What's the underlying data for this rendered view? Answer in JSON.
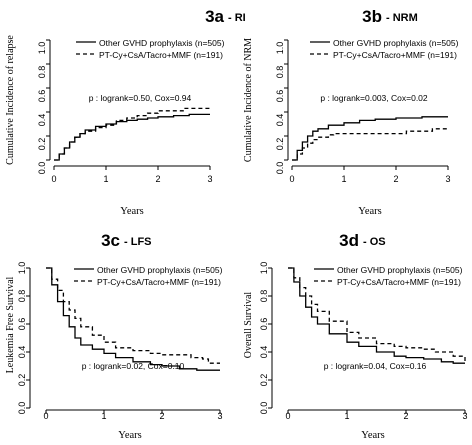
{
  "chart_data": [
    {
      "type": "line",
      "id": "3a",
      "title_main": "3a",
      "title_sub": "- RI",
      "xlabel": "Years",
      "ylabel": "Cumulative Incidence of relapse",
      "xlim": [
        0,
        3
      ],
      "ylim": [
        0,
        1
      ],
      "xticks": [
        "0",
        "1",
        "2",
        "3"
      ],
      "yticks": [
        "0.0",
        "0.2",
        "0.4",
        "0.6",
        "0.8",
        "1.0"
      ],
      "legend_position": "top-right",
      "annotation": "p : logrank=0.50, Cox=0.94",
      "series": [
        {
          "name": "Other GVHD prophylaxis (n=505)",
          "style": "solid",
          "points": [
            [
              0,
              0
            ],
            [
              0.1,
              0.05
            ],
            [
              0.2,
              0.1
            ],
            [
              0.3,
              0.15
            ],
            [
              0.4,
              0.19
            ],
            [
              0.5,
              0.22
            ],
            [
              0.6,
              0.25
            ],
            [
              0.8,
              0.28
            ],
            [
              1.0,
              0.3
            ],
            [
              1.2,
              0.32
            ],
            [
              1.4,
              0.33
            ],
            [
              1.6,
              0.34
            ],
            [
              1.8,
              0.35
            ],
            [
              2.0,
              0.36
            ],
            [
              2.3,
              0.37
            ],
            [
              2.6,
              0.38
            ],
            [
              3.0,
              0.38
            ]
          ]
        },
        {
          "name": "PT-Cy+CsA/Tacro+MMF (n=191)",
          "style": "dashed",
          "points": [
            [
              0,
              0
            ],
            [
              0.1,
              0.05
            ],
            [
              0.2,
              0.1
            ],
            [
              0.3,
              0.15
            ],
            [
              0.4,
              0.19
            ],
            [
              0.5,
              0.22
            ],
            [
              0.6,
              0.24
            ],
            [
              0.8,
              0.27
            ],
            [
              1.0,
              0.29
            ],
            [
              1.2,
              0.33
            ],
            [
              1.4,
              0.35
            ],
            [
              1.6,
              0.37
            ],
            [
              1.8,
              0.39
            ],
            [
              2.0,
              0.41
            ],
            [
              2.4,
              0.41
            ],
            [
              2.5,
              0.43
            ],
            [
              3.0,
              0.43
            ]
          ]
        }
      ]
    },
    {
      "type": "line",
      "id": "3b",
      "title_main": "3b",
      "title_sub": "- NRM",
      "xlabel": "Years",
      "ylabel": "Cumulative Incidence of NRM",
      "xlim": [
        0,
        3
      ],
      "ylim": [
        0,
        1
      ],
      "xticks": [
        "0",
        "1",
        "2",
        "3"
      ],
      "yticks": [
        "0.0",
        "0.2",
        "0.4",
        "0.6",
        "0.8",
        "1.0"
      ],
      "legend_position": "top-right",
      "annotation": "p : logrank=0.003, Cox=0.02",
      "series": [
        {
          "name": "Other GVHD prophylaxis (n=505)",
          "style": "solid",
          "points": [
            [
              0,
              0
            ],
            [
              0.1,
              0.08
            ],
            [
              0.2,
              0.15
            ],
            [
              0.3,
              0.2
            ],
            [
              0.4,
              0.24
            ],
            [
              0.5,
              0.26
            ],
            [
              0.7,
              0.29
            ],
            [
              1.0,
              0.31
            ],
            [
              1.3,
              0.33
            ],
            [
              1.6,
              0.34
            ],
            [
              2.0,
              0.35
            ],
            [
              2.5,
              0.36
            ],
            [
              3.0,
              0.36
            ]
          ]
        },
        {
          "name": "PT-Cy+CsA/Tacro+MMF (n=191)",
          "style": "dashed",
          "points": [
            [
              0,
              0
            ],
            [
              0.1,
              0.05
            ],
            [
              0.2,
              0.1
            ],
            [
              0.3,
              0.14
            ],
            [
              0.4,
              0.17
            ],
            [
              0.5,
              0.19
            ],
            [
              0.7,
              0.21
            ],
            [
              0.8,
              0.22
            ],
            [
              2.0,
              0.22
            ],
            [
              2.2,
              0.24
            ],
            [
              2.6,
              0.24
            ],
            [
              2.7,
              0.26
            ],
            [
              3.0,
              0.26
            ]
          ]
        }
      ]
    },
    {
      "type": "line",
      "id": "3c",
      "title_main": "3c",
      "title_sub": "- LFS",
      "xlabel": "Years",
      "ylabel": "Leukemia Free Survival",
      "xlim": [
        0,
        3
      ],
      "ylim": [
        0,
        1
      ],
      "xticks": [
        "0",
        "1",
        "2",
        "3"
      ],
      "yticks": [
        "0.0",
        "0.2",
        "0.4",
        "0.6",
        "0.8",
        "1.0"
      ],
      "legend_position": "top-right",
      "annotation": "p : logrank=0.02, Cox=0.10",
      "series": [
        {
          "name": "Other GVHD prophylaxis (n=505)",
          "style": "solid",
          "points": [
            [
              0,
              1.0
            ],
            [
              0.1,
              0.88
            ],
            [
              0.2,
              0.76
            ],
            [
              0.3,
              0.66
            ],
            [
              0.4,
              0.58
            ],
            [
              0.5,
              0.5
            ],
            [
              0.6,
              0.45
            ],
            [
              0.8,
              0.42
            ],
            [
              1.0,
              0.39
            ],
            [
              1.2,
              0.36
            ],
            [
              1.5,
              0.33
            ],
            [
              1.8,
              0.31
            ],
            [
              2.0,
              0.3
            ],
            [
              2.3,
              0.28
            ],
            [
              2.6,
              0.27
            ],
            [
              3.0,
              0.27
            ]
          ]
        },
        {
          "name": "PT-Cy+CsA/Tacro+MMF (n=191)",
          "style": "dashed",
          "points": [
            [
              0,
              1.0
            ],
            [
              0.1,
              0.92
            ],
            [
              0.2,
              0.84
            ],
            [
              0.3,
              0.76
            ],
            [
              0.4,
              0.7
            ],
            [
              0.5,
              0.64
            ],
            [
              0.6,
              0.58
            ],
            [
              0.8,
              0.52
            ],
            [
              1.0,
              0.47
            ],
            [
              1.2,
              0.43
            ],
            [
              1.5,
              0.41
            ],
            [
              1.8,
              0.39
            ],
            [
              2.0,
              0.38
            ],
            [
              2.5,
              0.36
            ],
            [
              2.7,
              0.35
            ],
            [
              2.8,
              0.32
            ],
            [
              3.0,
              0.32
            ]
          ]
        }
      ]
    },
    {
      "type": "line",
      "id": "3d",
      "title_main": "3d",
      "title_sub": "- OS",
      "xlabel": "Years",
      "ylabel": "Overall Survival",
      "xlim": [
        0,
        3
      ],
      "ylim": [
        0,
        1
      ],
      "xticks": [
        "0",
        "1",
        "2",
        "3"
      ],
      "yticks": [
        "0.0",
        "0.2",
        "0.4",
        "0.6",
        "0.8",
        "1.0"
      ],
      "legend_position": "top-right",
      "annotation": "p : logrank=0.04, Cox=0.16",
      "series": [
        {
          "name": "Other GVHD prophylaxis (n=505)",
          "style": "solid",
          "points": [
            [
              0,
              1.0
            ],
            [
              0.1,
              0.9
            ],
            [
              0.2,
              0.8
            ],
            [
              0.3,
              0.72
            ],
            [
              0.4,
              0.65
            ],
            [
              0.5,
              0.6
            ],
            [
              0.7,
              0.53
            ],
            [
              1.0,
              0.47
            ],
            [
              1.2,
              0.44
            ],
            [
              1.5,
              0.4
            ],
            [
              1.8,
              0.37
            ],
            [
              2.0,
              0.36
            ],
            [
              2.3,
              0.35
            ],
            [
              2.6,
              0.33
            ],
            [
              2.8,
              0.32
            ],
            [
              3.0,
              0.32
            ]
          ]
        },
        {
          "name": "PT-Cy+CsA/Tacro+MMF (n=191)",
          "style": "dashed",
          "points": [
            [
              0,
              1.0
            ],
            [
              0.1,
              0.93
            ],
            [
              0.2,
              0.86
            ],
            [
              0.3,
              0.8
            ],
            [
              0.4,
              0.74
            ],
            [
              0.5,
              0.69
            ],
            [
              0.7,
              0.62
            ],
            [
              1.0,
              0.54
            ],
            [
              1.2,
              0.5
            ],
            [
              1.5,
              0.46
            ],
            [
              1.8,
              0.44
            ],
            [
              2.0,
              0.43
            ],
            [
              2.3,
              0.42
            ],
            [
              2.5,
              0.4
            ],
            [
              2.8,
              0.37
            ],
            [
              3.0,
              0.33
            ]
          ]
        }
      ]
    }
  ]
}
